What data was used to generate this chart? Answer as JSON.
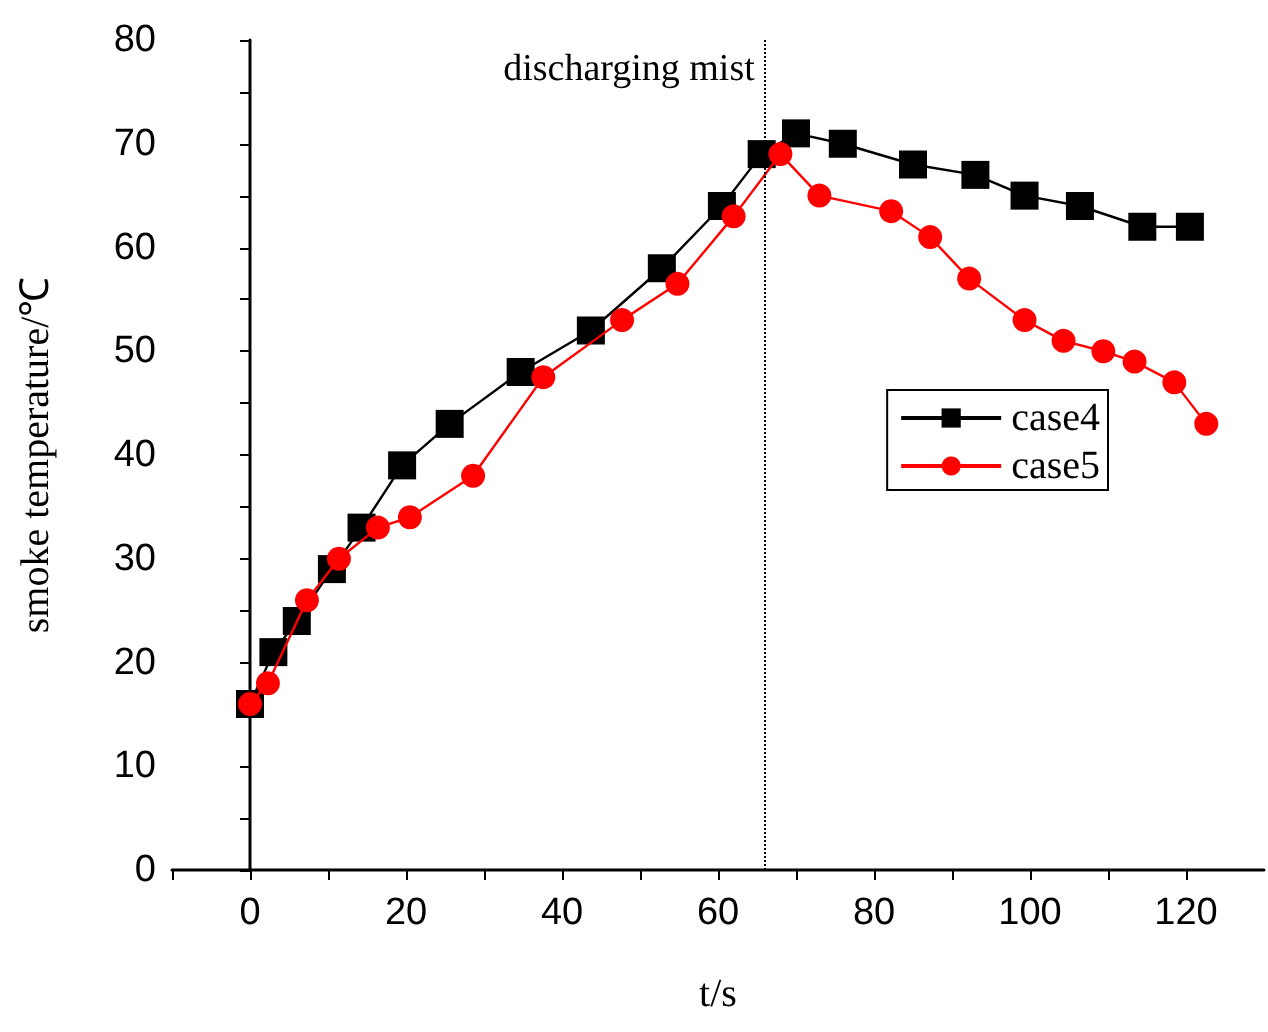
{
  "chart_data": {
    "type": "line",
    "xlabel": "t/s",
    "ylabel": "smoke temperature/℃",
    "xlim": [
      -10,
      130
    ],
    "ylim": [
      0,
      80
    ],
    "xticks": [
      {
        "value": -10,
        "label": null
      },
      0,
      {
        "value": 10,
        "label": null
      },
      20,
      {
        "value": 30,
        "label": null
      },
      40,
      {
        "value": 50,
        "label": null
      },
      60,
      {
        "value": 70,
        "label": null
      },
      80,
      {
        "value": 90,
        "label": null
      },
      100,
      {
        "value": 110,
        "label": null
      },
      120
    ],
    "yticks": [
      0,
      {
        "value": 5,
        "label": null
      },
      10,
      {
        "value": 15,
        "label": null
      },
      20,
      {
        "value": 25,
        "label": null
      },
      30,
      {
        "value": 35,
        "label": null
      },
      40,
      {
        "value": 45,
        "label": null
      },
      50,
      {
        "value": 55,
        "label": null
      },
      60,
      {
        "value": 65,
        "label": null
      },
      70,
      {
        "value": 75,
        "label": null
      },
      80
    ],
    "grid": false,
    "legend": "right",
    "line_style": "solid",
    "ref_lines": [
      {
        "axis": "x",
        "value": 66,
        "label": "discharging mist",
        "line_style": "dotted",
        "color": "#000000"
      }
    ],
    "series": [
      {
        "name": "case4",
        "color": "#000000",
        "marker": "square",
        "x": [
          0,
          3,
          6,
          10.5,
          14.3,
          19.5,
          25.6,
          34.7,
          43.7,
          52.8,
          60.5,
          65.6,
          70,
          76,
          85,
          93,
          99.3,
          106.4,
          114.4,
          120.5
        ],
        "values": [
          16,
          21,
          24,
          29,
          33,
          39,
          43,
          48,
          52,
          58,
          64,
          69,
          71,
          70,
          68,
          67,
          65,
          64,
          62,
          62
        ]
      },
      {
        "name": "case5",
        "color": "#ff0000",
        "marker": "circle",
        "x": [
          0,
          2.3,
          7.3,
          11.4,
          16.4,
          20.5,
          28.6,
          37.6,
          47.7,
          54.8,
          62,
          68,
          73,
          82.2,
          87.2,
          92.2,
          99.3,
          104.3,
          109.4,
          113.4,
          118.5,
          122.6
        ],
        "values": [
          16,
          18,
          26,
          30,
          33,
          34,
          38,
          47.5,
          53,
          56.5,
          63,
          69,
          65,
          63.5,
          61,
          57,
          53,
          51,
          50,
          49,
          47,
          43
        ]
      }
    ]
  }
}
